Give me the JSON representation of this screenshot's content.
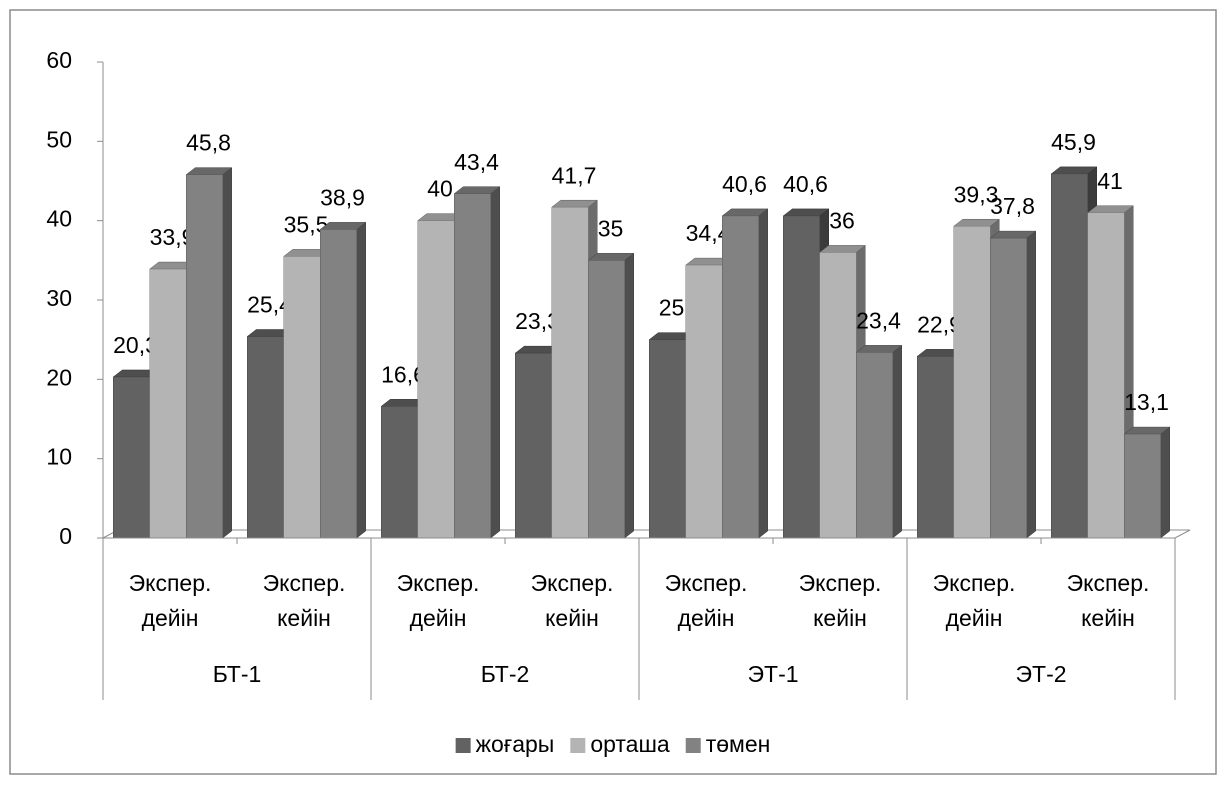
{
  "chart_data": {
    "type": "bar3d",
    "categories": [
      "Экспер. дейін",
      "Экспер. кейін",
      "Экспер. дейін",
      "Экспер. кейін",
      "Экспер. дейін",
      "Экспер. кейін",
      "Экспер. дейін",
      "Экспер. кейін"
    ],
    "groups": [
      "БТ-1",
      "БТ-2",
      "ЭТ-1",
      "ЭТ-2"
    ],
    "series": [
      {
        "name": "жоғары",
        "color": "#626262",
        "values": [
          20.3,
          25.4,
          16.6,
          23.3,
          25,
          40.6,
          22.9,
          45.9
        ],
        "value_labels": [
          "20,3",
          "25,4",
          "16,6",
          "23,3",
          "25",
          "40,6",
          "22,9",
          "45,9"
        ]
      },
      {
        "name": "орташа",
        "color": "#b4b4b4",
        "values": [
          33.9,
          35.5,
          40,
          41.7,
          34.4,
          36,
          39.3,
          41
        ],
        "value_labels": [
          "33,9",
          "35,5",
          "40",
          "41,7",
          "34,4",
          "36",
          "39,3",
          "41"
        ]
      },
      {
        "name": "төмен",
        "color": "#828282",
        "values": [
          45.8,
          38.9,
          43.4,
          35,
          40.6,
          23.4,
          37.8,
          13.1
        ],
        "value_labels": [
          "45,8",
          "38,9",
          "43,4",
          "35",
          "40,6",
          "23,4",
          "37,8",
          "13,1"
        ]
      }
    ],
    "ylim": [
      0,
      60
    ],
    "yticks": [
      0,
      10,
      20,
      30,
      40,
      50,
      60
    ],
    "grid": false,
    "legend": "bottom"
  }
}
